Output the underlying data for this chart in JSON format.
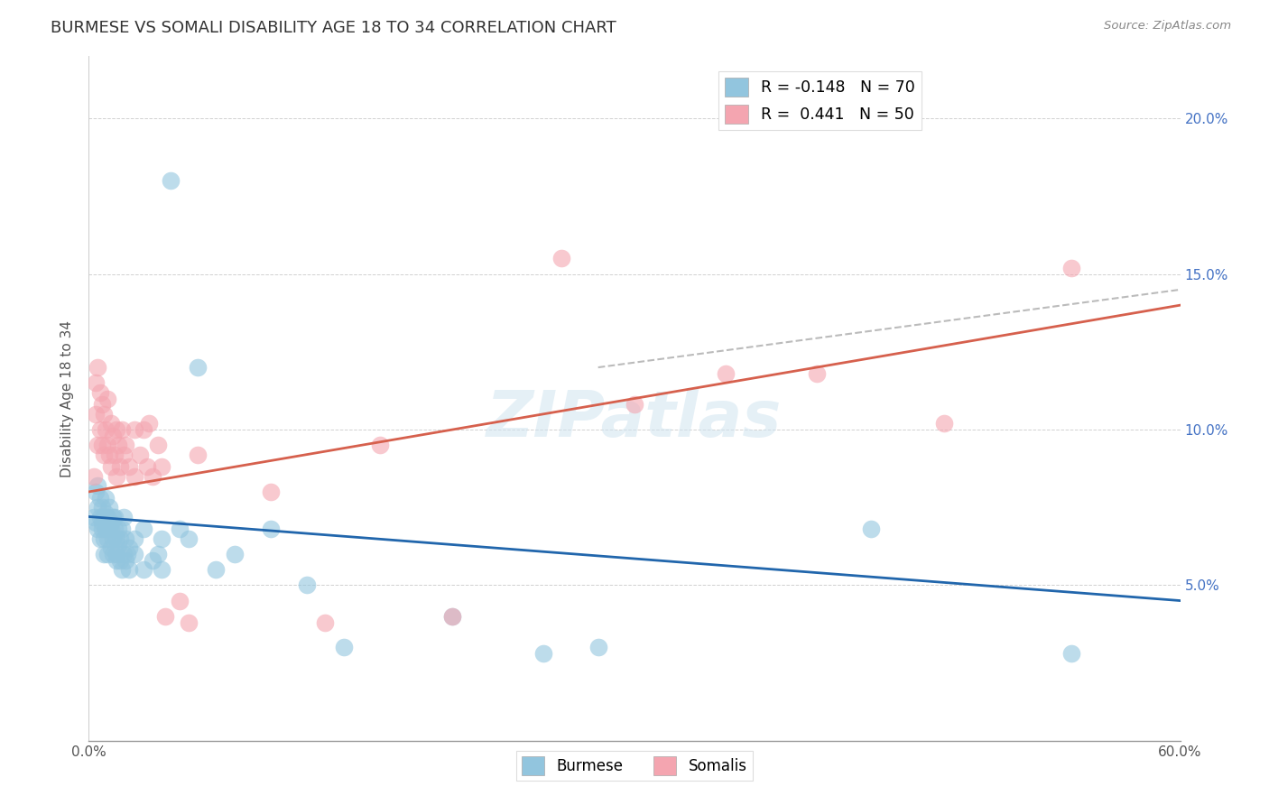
{
  "title": "BURMESE VS SOMALI DISABILITY AGE 18 TO 34 CORRELATION CHART",
  "source": "Source: ZipAtlas.com",
  "ylabel": "Disability Age 18 to 34",
  "xlim": [
    0.0,
    0.6
  ],
  "ylim": [
    0.0,
    0.22
  ],
  "xticks": [
    0.0,
    0.1,
    0.2,
    0.3,
    0.4,
    0.5,
    0.6
  ],
  "xticklabels": [
    "0.0%",
    "",
    "",
    "",
    "",
    "",
    "60.0%"
  ],
  "yticks": [
    0.0,
    0.05,
    0.1,
    0.15,
    0.2
  ],
  "yticklabels_left": [
    "",
    "",
    "",
    "",
    ""
  ],
  "yticklabels_right": [
    "",
    "5.0%",
    "10.0%",
    "15.0%",
    "20.0%"
  ],
  "burmese_color": "#92c5de",
  "somali_color": "#f4a5b0",
  "burmese_line_color": "#2166ac",
  "somali_line_color": "#d6604d",
  "burmese_R": -0.148,
  "burmese_N": 70,
  "somali_R": 0.441,
  "somali_N": 50,
  "watermark": "ZIPatlas",
  "burmese_scatter": [
    [
      0.003,
      0.072
    ],
    [
      0.004,
      0.07
    ],
    [
      0.004,
      0.08
    ],
    [
      0.005,
      0.075
    ],
    [
      0.005,
      0.068
    ],
    [
      0.005,
      0.082
    ],
    [
      0.006,
      0.072
    ],
    [
      0.006,
      0.065
    ],
    [
      0.006,
      0.078
    ],
    [
      0.007,
      0.07
    ],
    [
      0.007,
      0.068
    ],
    [
      0.007,
      0.075
    ],
    [
      0.008,
      0.072
    ],
    [
      0.008,
      0.065
    ],
    [
      0.008,
      0.06
    ],
    [
      0.009,
      0.073
    ],
    [
      0.009,
      0.068
    ],
    [
      0.009,
      0.078
    ],
    [
      0.01,
      0.07
    ],
    [
      0.01,
      0.065
    ],
    [
      0.01,
      0.072
    ],
    [
      0.01,
      0.06
    ],
    [
      0.011,
      0.068
    ],
    [
      0.011,
      0.075
    ],
    [
      0.012,
      0.07
    ],
    [
      0.012,
      0.062
    ],
    [
      0.012,
      0.068
    ],
    [
      0.013,
      0.072
    ],
    [
      0.013,
      0.065
    ],
    [
      0.013,
      0.06
    ],
    [
      0.014,
      0.068
    ],
    [
      0.014,
      0.072
    ],
    [
      0.015,
      0.065
    ],
    [
      0.015,
      0.06
    ],
    [
      0.015,
      0.058
    ],
    [
      0.016,
      0.068
    ],
    [
      0.016,
      0.063
    ],
    [
      0.017,
      0.065
    ],
    [
      0.017,
      0.058
    ],
    [
      0.018,
      0.068
    ],
    [
      0.018,
      0.055
    ],
    [
      0.019,
      0.06
    ],
    [
      0.019,
      0.072
    ],
    [
      0.02,
      0.065
    ],
    [
      0.02,
      0.058
    ],
    [
      0.021,
      0.06
    ],
    [
      0.022,
      0.062
    ],
    [
      0.022,
      0.055
    ],
    [
      0.025,
      0.06
    ],
    [
      0.025,
      0.065
    ],
    [
      0.03,
      0.068
    ],
    [
      0.03,
      0.055
    ],
    [
      0.035,
      0.058
    ],
    [
      0.038,
      0.06
    ],
    [
      0.04,
      0.065
    ],
    [
      0.04,
      0.055
    ],
    [
      0.045,
      0.18
    ],
    [
      0.05,
      0.068
    ],
    [
      0.055,
      0.065
    ],
    [
      0.06,
      0.12
    ],
    [
      0.07,
      0.055
    ],
    [
      0.08,
      0.06
    ],
    [
      0.1,
      0.068
    ],
    [
      0.12,
      0.05
    ],
    [
      0.14,
      0.03
    ],
    [
      0.2,
      0.04
    ],
    [
      0.25,
      0.028
    ],
    [
      0.28,
      0.03
    ],
    [
      0.43,
      0.068
    ],
    [
      0.54,
      0.028
    ]
  ],
  "somali_scatter": [
    [
      0.003,
      0.085
    ],
    [
      0.004,
      0.115
    ],
    [
      0.004,
      0.105
    ],
    [
      0.005,
      0.12
    ],
    [
      0.005,
      0.095
    ],
    [
      0.006,
      0.112
    ],
    [
      0.006,
      0.1
    ],
    [
      0.007,
      0.108
    ],
    [
      0.007,
      0.095
    ],
    [
      0.008,
      0.105
    ],
    [
      0.008,
      0.092
    ],
    [
      0.009,
      0.1
    ],
    [
      0.01,
      0.095
    ],
    [
      0.01,
      0.11
    ],
    [
      0.011,
      0.092
    ],
    [
      0.012,
      0.102
    ],
    [
      0.012,
      0.088
    ],
    [
      0.013,
      0.098
    ],
    [
      0.014,
      0.092
    ],
    [
      0.015,
      0.1
    ],
    [
      0.015,
      0.085
    ],
    [
      0.016,
      0.095
    ],
    [
      0.017,
      0.088
    ],
    [
      0.018,
      0.1
    ],
    [
      0.019,
      0.092
    ],
    [
      0.02,
      0.095
    ],
    [
      0.022,
      0.088
    ],
    [
      0.025,
      0.1
    ],
    [
      0.025,
      0.085
    ],
    [
      0.028,
      0.092
    ],
    [
      0.03,
      0.1
    ],
    [
      0.032,
      0.088
    ],
    [
      0.033,
      0.102
    ],
    [
      0.035,
      0.085
    ],
    [
      0.038,
      0.095
    ],
    [
      0.04,
      0.088
    ],
    [
      0.042,
      0.04
    ],
    [
      0.05,
      0.045
    ],
    [
      0.055,
      0.038
    ],
    [
      0.06,
      0.092
    ],
    [
      0.1,
      0.08
    ],
    [
      0.13,
      0.038
    ],
    [
      0.16,
      0.095
    ],
    [
      0.2,
      0.04
    ],
    [
      0.26,
      0.155
    ],
    [
      0.3,
      0.108
    ],
    [
      0.35,
      0.118
    ],
    [
      0.4,
      0.118
    ],
    [
      0.47,
      0.102
    ],
    [
      0.54,
      0.152
    ]
  ]
}
